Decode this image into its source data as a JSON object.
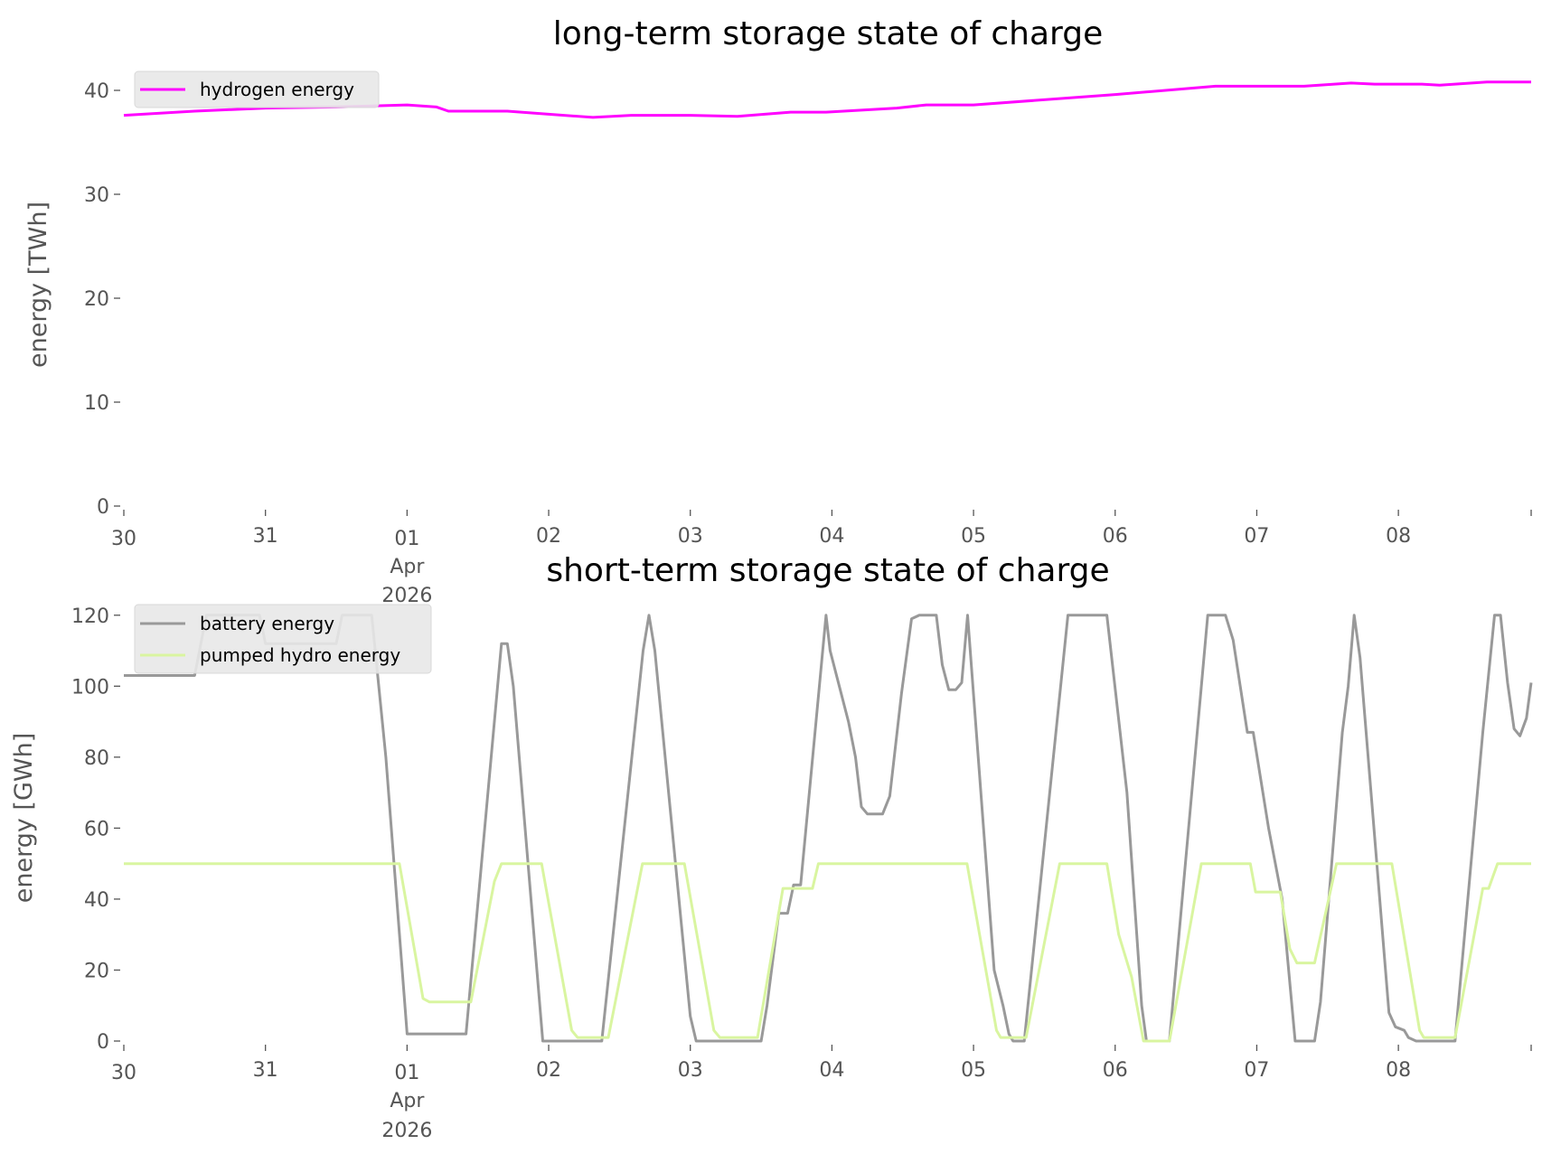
{
  "chart_data": [
    {
      "type": "line",
      "title": "long-term storage state of charge",
      "xlabel": "",
      "ylabel": "energy [TWh]",
      "x_units": "hours since 2026-03-30 00:00",
      "xlim": [
        0,
        238.5
      ],
      "ylim": [
        0,
        42
      ],
      "yticks": [
        0,
        10,
        20,
        30,
        40
      ],
      "ytick_labels": [
        "0",
        "10",
        "20",
        "30",
        "40"
      ],
      "xticks": [
        0,
        24,
        48,
        72,
        96,
        120,
        144,
        168,
        192,
        216
      ],
      "xtick_labels": [
        "30",
        "31",
        "01",
        "02",
        "03",
        "04",
        "05",
        "06",
        "07",
        "08"
      ],
      "xtick_sublabel": {
        "tick": "01",
        "month": "Apr",
        "year": "2026"
      },
      "grid": false,
      "legend_position": "top-left",
      "series": [
        {
          "name": "hydrogen energy",
          "color": "#ff00ff",
          "points": [
            [
              0,
              37.6
            ],
            [
              12,
              38.0
            ],
            [
              24,
              38.3
            ],
            [
              36,
              38.4
            ],
            [
              48,
              38.6
            ],
            [
              53,
              38.4
            ],
            [
              55,
              38.0
            ],
            [
              65,
              38.0
            ],
            [
              72,
              37.7
            ],
            [
              79.5,
              37.4
            ],
            [
              86,
              37.6
            ],
            [
              96,
              37.6
            ],
            [
              104,
              37.5
            ],
            [
              113,
              37.9
            ],
            [
              119,
              37.9
            ],
            [
              131,
              38.3
            ],
            [
              136,
              38.6
            ],
            [
              144,
              38.6
            ],
            [
              168,
              39.6
            ],
            [
              185,
              40.4
            ],
            [
              200,
              40.4
            ],
            [
              208,
              40.7
            ],
            [
              212,
              40.6
            ],
            [
              220,
              40.6
            ],
            [
              223,
              40.5
            ],
            [
              231,
              40.8
            ],
            [
              238.5,
              40.8
            ]
          ]
        }
      ]
    },
    {
      "type": "line",
      "title": "short-term storage state of charge",
      "xlabel": "",
      "ylabel": "energy [GWh]",
      "x_units": "hours since 2026-03-30 00:00",
      "xlim": [
        0,
        238.5
      ],
      "ylim": [
        0,
        123
      ],
      "yticks": [
        0,
        20,
        40,
        60,
        80,
        100,
        120
      ],
      "ytick_labels": [
        "0",
        "20",
        "40",
        "60",
        "80",
        "100",
        "120"
      ],
      "xticks": [
        0,
        24,
        48,
        72,
        96,
        120,
        144,
        168,
        192,
        216
      ],
      "xtick_labels": [
        "30",
        "31",
        "01",
        "02",
        "03",
        "04",
        "05",
        "06",
        "07",
        "08"
      ],
      "xtick_sublabel": {
        "tick": "01",
        "month": "Apr",
        "year": "2026"
      },
      "grid": false,
      "legend_position": "top-left",
      "series": [
        {
          "name": "battery energy",
          "color": "#999999",
          "points": [
            [
              0,
              103
            ],
            [
              12,
              103
            ],
            [
              14,
              120
            ],
            [
              23,
              120
            ],
            [
              24,
              112
            ],
            [
              36,
              112
            ],
            [
              37,
              120
            ],
            [
              42,
              120
            ],
            [
              44.4,
              80
            ],
            [
              48,
              2
            ],
            [
              58,
              2
            ],
            [
              64,
              112
            ],
            [
              65,
              112
            ],
            [
              66,
              100
            ],
            [
              71,
              0
            ],
            [
              81,
              0
            ],
            [
              88,
              110
            ],
            [
              89,
              120
            ],
            [
              90,
              110
            ],
            [
              96,
              7
            ],
            [
              97,
              0
            ],
            [
              108,
              0
            ],
            [
              109,
              10
            ],
            [
              111,
              36
            ],
            [
              112.5,
              36
            ],
            [
              113.5,
              44
            ],
            [
              114.7,
              44
            ],
            [
              119,
              120
            ],
            [
              119.7,
              110
            ],
            [
              122.8,
              90
            ],
            [
              124,
              80
            ],
            [
              125,
              66
            ],
            [
              126,
              64
            ],
            [
              128.6,
              64
            ],
            [
              129.8,
              69
            ],
            [
              131.8,
              98
            ],
            [
              133.5,
              119
            ],
            [
              134.8,
              120
            ],
            [
              137.7,
              120
            ],
            [
              138.7,
              106
            ],
            [
              139.8,
              99
            ],
            [
              141,
              99
            ],
            [
              142,
              101
            ],
            [
              143,
              120
            ],
            [
              147.5,
              20
            ],
            [
              149,
              10
            ],
            [
              150,
              2
            ],
            [
              150.7,
              0
            ],
            [
              152.6,
              0
            ],
            [
              160,
              120
            ],
            [
              166.6,
              120
            ],
            [
              170,
              70
            ],
            [
              172.5,
              10
            ],
            [
              173.3,
              0
            ],
            [
              177.2,
              0
            ],
            [
              183.7,
              120
            ],
            [
              186.7,
              120
            ],
            [
              188,
              113
            ],
            [
              190.4,
              87
            ],
            [
              191.4,
              87
            ],
            [
              194,
              60
            ],
            [
              196.3,
              40
            ],
            [
              198.5,
              0
            ],
            [
              201.8,
              0
            ],
            [
              202.8,
              11
            ],
            [
              206.5,
              87
            ],
            [
              207.5,
              100
            ],
            [
              208.5,
              120
            ],
            [
              209.5,
              108
            ],
            [
              214.4,
              8
            ],
            [
              215.5,
              4
            ],
            [
              217,
              3
            ],
            [
              217.7,
              1
            ],
            [
              219,
              0
            ],
            [
              225.6,
              0
            ],
            [
              230.3,
              87
            ],
            [
              232.3,
              120
            ],
            [
              233.3,
              120
            ],
            [
              234.5,
              101
            ],
            [
              235.6,
              88
            ],
            [
              236.6,
              86
            ],
            [
              237.7,
              91
            ],
            [
              238.5,
              101
            ]
          ]
        },
        {
          "name": "pumped hydro energy",
          "color": "#d9f5a0",
          "points": [
            [
              0,
              50
            ],
            [
              46.7,
              50
            ],
            [
              50.7,
              12
            ],
            [
              51.8,
              11
            ],
            [
              58.8,
              11
            ],
            [
              62.8,
              45
            ],
            [
              64,
              50
            ],
            [
              70.8,
              50
            ],
            [
              75.9,
              3
            ],
            [
              76.9,
              1
            ],
            [
              82.1,
              1
            ],
            [
              87.9,
              50
            ],
            [
              95,
              50
            ],
            [
              100,
              3
            ],
            [
              101,
              1
            ],
            [
              107.4,
              1
            ],
            [
              111.7,
              43
            ],
            [
              116.7,
              43
            ],
            [
              117.7,
              50
            ],
            [
              142.9,
              50
            ],
            [
              147.9,
              3
            ],
            [
              148.6,
              1
            ],
            [
              152.9,
              1
            ],
            [
              158.6,
              50
            ],
            [
              166.6,
              50
            ],
            [
              168.6,
              30
            ],
            [
              170.8,
              18
            ],
            [
              172.8,
              0
            ],
            [
              177.2,
              0
            ],
            [
              182.6,
              50
            ],
            [
              190.9,
              50
            ],
            [
              191.8,
              42
            ],
            [
              196,
              42
            ],
            [
              197.6,
              26
            ],
            [
              198.8,
              22
            ],
            [
              201.8,
              22
            ],
            [
              205.5,
              50
            ],
            [
              214.9,
              50
            ],
            [
              219.6,
              3
            ],
            [
              220.3,
              1
            ],
            [
              225.6,
              1
            ],
            [
              230.3,
              43
            ],
            [
              231.3,
              43
            ],
            [
              232.8,
              50
            ],
            [
              238.5,
              50
            ]
          ]
        }
      ]
    }
  ]
}
